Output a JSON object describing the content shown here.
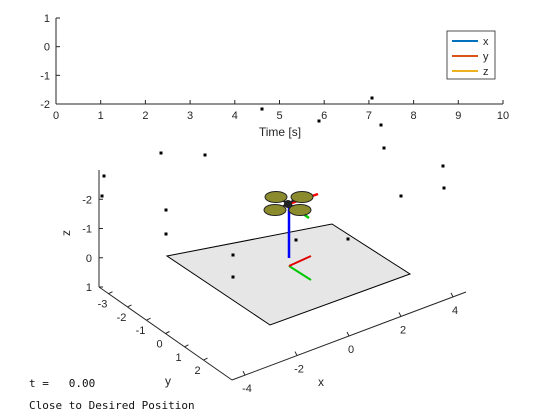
{
  "chart_data": [
    {
      "type": "line",
      "xlabel": "Time [s]",
      "ylabel": "",
      "xlim": [
        0,
        10
      ],
      "ylim": [
        -2,
        1
      ],
      "xticks": [
        "0",
        "1",
        "2",
        "3",
        "4",
        "5",
        "6",
        "7",
        "8",
        "9",
        "10"
      ],
      "yticks": [
        "1",
        "0",
        "-1",
        "-2"
      ],
      "grid": false,
      "legend_position": "top-right",
      "series": [
        {
          "name": "x",
          "color": "#0072BD",
          "x": [],
          "y": []
        },
        {
          "name": "y",
          "color": "#D95319",
          "x": [],
          "y": []
        },
        {
          "name": "z",
          "color": "#EDB120",
          "x": [],
          "y": []
        }
      ]
    },
    {
      "type": "scatter",
      "xlabel": "x",
      "ylabel": "y",
      "zlabel": "z",
      "xlim": [
        -4,
        4
      ],
      "ylim": [
        -3,
        3
      ],
      "zlim": [
        -3,
        1
      ],
      "xticks": [
        "-4",
        "-2",
        "0",
        "2",
        "4"
      ],
      "yticks": [
        "-3",
        "-2",
        "-1",
        "0",
        "1",
        "2"
      ],
      "zticks": [
        "-2",
        "-1",
        "0",
        "1"
      ],
      "z_axis_reversed": true,
      "grid": false,
      "ground_color": "#E6E6E6",
      "drone_arm_colors": {
        "x": "#ff0000",
        "y": "#00c800",
        "z": "#0000ff"
      },
      "rotor_color": "#8B8B2E"
    }
  ],
  "status": {
    "time_label": "t =",
    "time_value": "0.00",
    "message": "Close to Desired Position"
  }
}
